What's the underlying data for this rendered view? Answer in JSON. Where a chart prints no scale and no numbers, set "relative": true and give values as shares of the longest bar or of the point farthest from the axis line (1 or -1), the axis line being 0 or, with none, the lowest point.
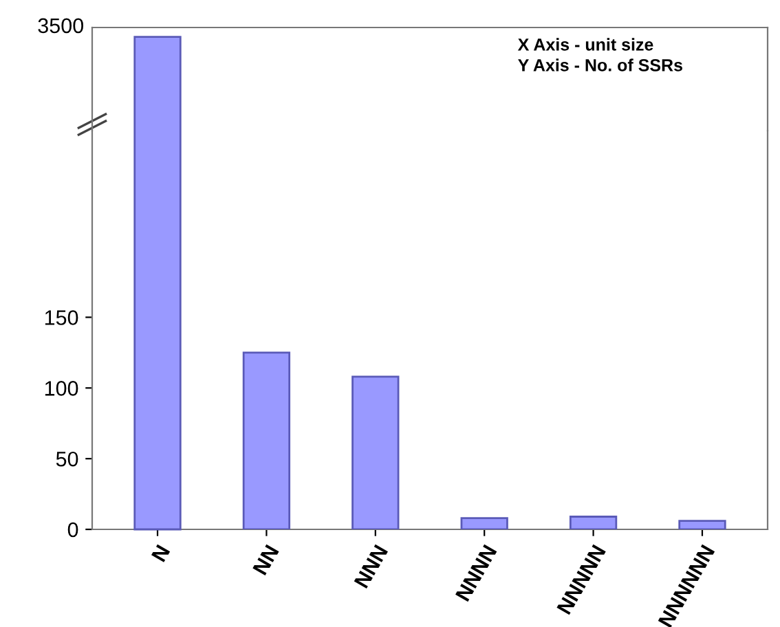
{
  "chart_data": [
    {
      "type": "bar",
      "values": [
        1,
        null,
        null,
        null,
        null,
        null
      ],
      "color": "#9999ff",
      "relative": true,
      "grid": false,
      "annotations": [
        "3500",
        "X Axis - unit size",
        "Y Axis - No. of SSRs"
      ]
    },
    {
      "type": "bar",
      "categories": [
        "N",
        "NN",
        "NNN",
        "NNNN",
        "NNNNN",
        "NNNNNN"
      ],
      "values": [
        null,
        125,
        108,
        8,
        9,
        6
      ],
      "color": "#9999ff",
      "ylim": [
        0,
        282
      ],
      "yticks": [
        0,
        50,
        100,
        150
      ],
      "grid": false
    }
  ]
}
